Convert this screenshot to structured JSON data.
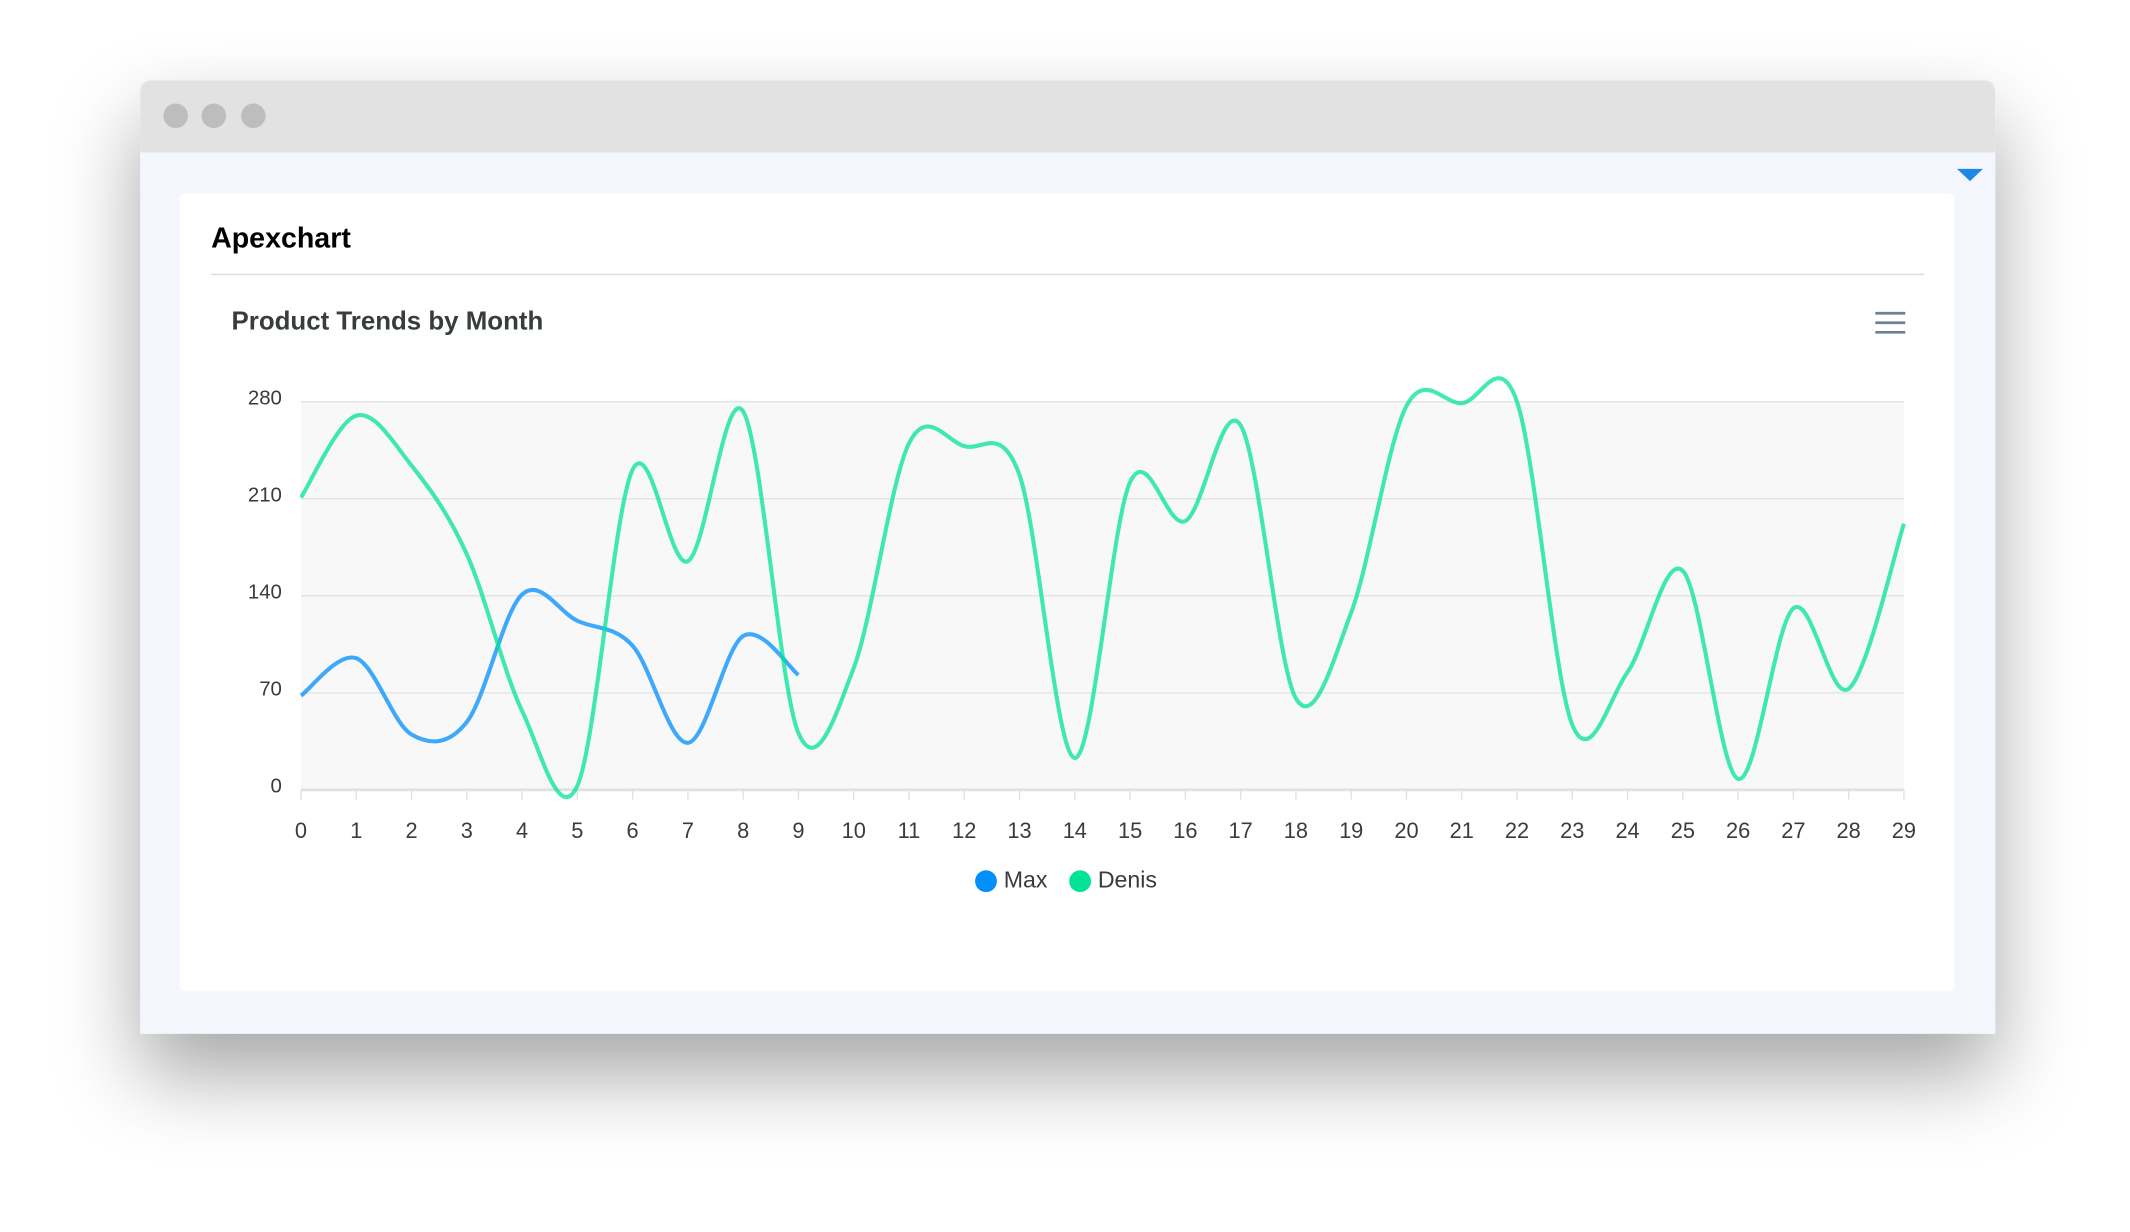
{
  "card": {
    "title": "Apexchart"
  },
  "chart_data": {
    "type": "line",
    "title": "Product Trends by Month",
    "x": [
      0,
      1,
      2,
      3,
      4,
      5,
      6,
      7,
      8,
      9,
      10,
      11,
      12,
      13,
      14,
      15,
      16,
      17,
      18,
      19,
      20,
      21,
      22,
      23,
      24,
      25,
      26,
      27,
      28,
      29
    ],
    "series": [
      {
        "name": "Max",
        "color": "#008ffb",
        "values": [
          68,
          95,
          40,
          49,
          141,
          122,
          104,
          34,
          111,
          83,
          null,
          null,
          null,
          null,
          null,
          null,
          null,
          null,
          null,
          null,
          null,
          null,
          null,
          null,
          null,
          null,
          null,
          null,
          null,
          null
        ]
      },
      {
        "name": "Denis",
        "color": "#00e396",
        "values": [
          211,
          270,
          234,
          170,
          57,
          3,
          231,
          165,
          273,
          41,
          88,
          250,
          248,
          227,
          23,
          222,
          194,
          263,
          66,
          128,
          277,
          279,
          280,
          47,
          85,
          158,
          8,
          131,
          73,
          192
        ]
      }
    ],
    "xlim": [
      0,
      29
    ],
    "xticks": [
      0,
      1,
      2,
      3,
      4,
      5,
      6,
      7,
      8,
      9,
      10,
      11,
      12,
      13,
      14,
      15,
      16,
      17,
      18,
      19,
      20,
      21,
      22,
      23,
      24,
      25,
      26,
      27,
      28,
      29
    ],
    "ylim": [
      0,
      280
    ],
    "yticks": [
      0,
      70,
      140,
      210,
      280
    ],
    "grid": true,
    "legend": "bottom"
  }
}
